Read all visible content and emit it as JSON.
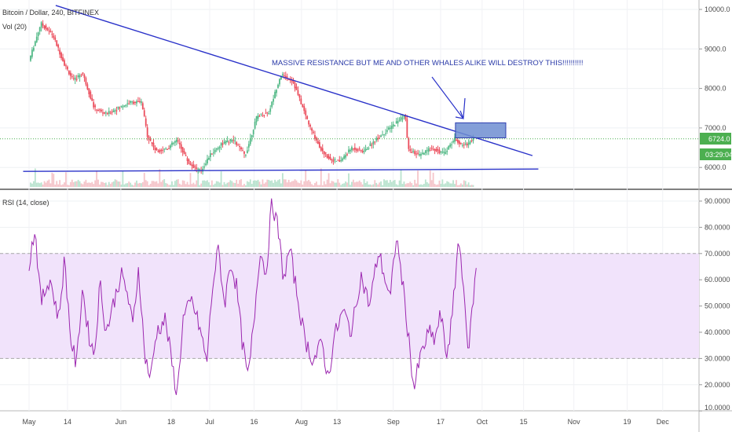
{
  "legend": {
    "symbol": "Bitcoin / Dollar, 240, BITFINEX",
    "volume": "Vol (20)",
    "rsi": "RSI (14, close)"
  },
  "annotation": "MASSIVE RESISTANCE BUT ME AND OTHER WHALES ALIKE WILL DESTROY THIS!!!!!!!!!!",
  "colors": {
    "up": "#53b987",
    "down": "#eb4d5c",
    "trendline": "#2a32c9",
    "rsi_line": "#9c27b0",
    "rsi_band": "#f1e3fb",
    "price_line": "#4caf50",
    "box_fill": "#6f8ed1"
  },
  "chart_data": [
    {
      "type": "candlestick",
      "title": "Bitcoin / Dollar, 240, BITFINEX",
      "y_ticks": [
        "10000.0",
        "9000.0",
        "8000.0",
        "7000.0",
        "6000.0"
      ],
      "ylim": [
        5600,
        10200
      ],
      "last_price": "6724.0",
      "countdown": "03:29:04",
      "path_points": [
        [
          "2018-05-01",
          8700
        ],
        [
          "2018-05-05",
          9650
        ],
        [
          "2018-05-09",
          9350
        ],
        [
          "2018-05-13",
          8600
        ],
        [
          "2018-05-16",
          8200
        ],
        [
          "2018-05-19",
          8400
        ],
        [
          "2018-05-23",
          7500
        ],
        [
          "2018-05-27",
          7350
        ],
        [
          "2018-05-31",
          7500
        ],
        [
          "2018-06-04",
          7650
        ],
        [
          "2018-06-08",
          7650
        ],
        [
          "2018-06-10",
          6800
        ],
        [
          "2018-06-13",
          6400
        ],
        [
          "2018-06-17",
          6500
        ],
        [
          "2018-06-20",
          6700
        ],
        [
          "2018-06-24",
          6100
        ],
        [
          "2018-06-28",
          5900
        ],
        [
          "2018-07-01",
          6300
        ],
        [
          "2018-07-05",
          6600
        ],
        [
          "2018-07-09",
          6700
        ],
        [
          "2018-07-13",
          6300
        ],
        [
          "2018-07-17",
          7300
        ],
        [
          "2018-07-21",
          7400
        ],
        [
          "2018-07-25",
          8350
        ],
        [
          "2018-07-29",
          8200
        ],
        [
          "2018-08-01",
          7600
        ],
        [
          "2018-08-04",
          7000
        ],
        [
          "2018-08-08",
          6400
        ],
        [
          "2018-08-11",
          6200
        ],
        [
          "2018-08-14",
          6150
        ],
        [
          "2018-08-18",
          6500
        ],
        [
          "2018-08-22",
          6400
        ],
        [
          "2018-08-26",
          6700
        ],
        [
          "2018-08-31",
          7000
        ],
        [
          "2018-09-05",
          7350
        ],
        [
          "2018-09-06",
          6450
        ],
        [
          "2018-09-10",
          6300
        ],
        [
          "2018-09-14",
          6500
        ],
        [
          "2018-09-18",
          6350
        ],
        [
          "2018-09-22",
          6750
        ],
        [
          "2018-09-24",
          6550
        ],
        [
          "2018-09-26",
          6600
        ],
        [
          "2018-09-28",
          6724
        ]
      ],
      "resistance_line": [
        [
          "2018-05-10",
          10100
        ],
        [
          "2018-10-18",
          6300
        ]
      ],
      "support_line": [
        [
          "2018-04-29",
          5900
        ],
        [
          "2018-10-20",
          5960
        ]
      ],
      "resistance_box": {
        "x": [
          "2018-09-22",
          "2018-10-09"
        ],
        "y": [
          6750,
          7130
        ]
      }
    },
    {
      "type": "line",
      "title": "RSI (14, close)",
      "y_ticks": [
        "90.0000",
        "80.0000",
        "70.0000",
        "60.0000",
        "50.0000",
        "40.0000",
        "30.0000",
        "20.0000",
        "10.0000"
      ],
      "ylim": [
        10,
        93
      ],
      "band": [
        30,
        70
      ],
      "values": [
        [
          "2018-05-01",
          66
        ],
        [
          "2018-05-03",
          80
        ],
        [
          "2018-05-05",
          51
        ],
        [
          "2018-05-08",
          61
        ],
        [
          "2018-05-11",
          45
        ],
        [
          "2018-05-13",
          68
        ],
        [
          "2018-05-15",
          38
        ],
        [
          "2018-05-17",
          27
        ],
        [
          "2018-05-19",
          57
        ],
        [
          "2018-05-21",
          40
        ],
        [
          "2018-05-23",
          31
        ],
        [
          "2018-05-25",
          59
        ],
        [
          "2018-05-27",
          40
        ],
        [
          "2018-06-01",
          62
        ],
        [
          "2018-06-03",
          56
        ],
        [
          "2018-06-05",
          42
        ],
        [
          "2018-06-07",
          65
        ],
        [
          "2018-06-09",
          32
        ],
        [
          "2018-06-11",
          22
        ],
        [
          "2018-06-13",
          40
        ],
        [
          "2018-06-16",
          45
        ],
        [
          "2018-06-18",
          30
        ],
        [
          "2018-06-20",
          16
        ],
        [
          "2018-06-22",
          45
        ],
        [
          "2018-06-25",
          52
        ],
        [
          "2018-06-28",
          40
        ],
        [
          "2018-06-30",
          28
        ],
        [
          "2018-07-02",
          58
        ],
        [
          "2018-07-04",
          72
        ],
        [
          "2018-07-06",
          50
        ],
        [
          "2018-07-08",
          67
        ],
        [
          "2018-07-10",
          58
        ],
        [
          "2018-07-12",
          36
        ],
        [
          "2018-07-14",
          22
        ],
        [
          "2018-07-16",
          45
        ],
        [
          "2018-07-18",
          72
        ],
        [
          "2018-07-20",
          62
        ],
        [
          "2018-07-22",
          90
        ],
        [
          "2018-07-24",
          80
        ],
        [
          "2018-07-26",
          60
        ],
        [
          "2018-07-28",
          72
        ],
        [
          "2018-07-30",
          58
        ],
        [
          "2018-08-02",
          38
        ],
        [
          "2018-08-05",
          29
        ],
        [
          "2018-08-08",
          36
        ],
        [
          "2018-08-10",
          22
        ],
        [
          "2018-08-12",
          38
        ],
        [
          "2018-08-15",
          48
        ],
        [
          "2018-08-18",
          40
        ],
        [
          "2018-08-21",
          62
        ],
        [
          "2018-08-24",
          50
        ],
        [
          "2018-08-27",
          71
        ],
        [
          "2018-08-31",
          52
        ],
        [
          "2018-09-02",
          77
        ],
        [
          "2018-09-04",
          60
        ],
        [
          "2018-09-06",
          40
        ],
        [
          "2018-09-08",
          18
        ],
        [
          "2018-09-10",
          30
        ],
        [
          "2018-09-13",
          40
        ],
        [
          "2018-09-15",
          37
        ],
        [
          "2018-09-17",
          47
        ],
        [
          "2018-09-19",
          31
        ],
        [
          "2018-09-21",
          46
        ],
        [
          "2018-09-23",
          76
        ],
        [
          "2018-09-25",
          57
        ],
        [
          "2018-09-26",
          30
        ],
        [
          "2018-09-28",
          52
        ],
        [
          "2018-09-29",
          65
        ]
      ]
    }
  ],
  "x_axis": {
    "labels": [
      {
        "text": "May",
        "date": "2018-05-01"
      },
      {
        "text": "14",
        "date": "2018-05-14"
      },
      {
        "text": "Jun",
        "date": "2018-06-01"
      },
      {
        "text": "18",
        "date": "2018-06-18"
      },
      {
        "text": "Jul",
        "date": "2018-07-01"
      },
      {
        "text": "16",
        "date": "2018-07-16"
      },
      {
        "text": "Aug",
        "date": "2018-08-01"
      },
      {
        "text": "13",
        "date": "2018-08-13"
      },
      {
        "text": "Sep",
        "date": "2018-09-01"
      },
      {
        "text": "17",
        "date": "2018-09-17"
      },
      {
        "text": "Oct",
        "date": "2018-10-01"
      },
      {
        "text": "15",
        "date": "2018-10-15"
      },
      {
        "text": "Nov",
        "date": "2018-11-01"
      },
      {
        "text": "19",
        "date": "2018-11-19"
      },
      {
        "text": "Dec",
        "date": "2018-12-01"
      }
    ]
  }
}
